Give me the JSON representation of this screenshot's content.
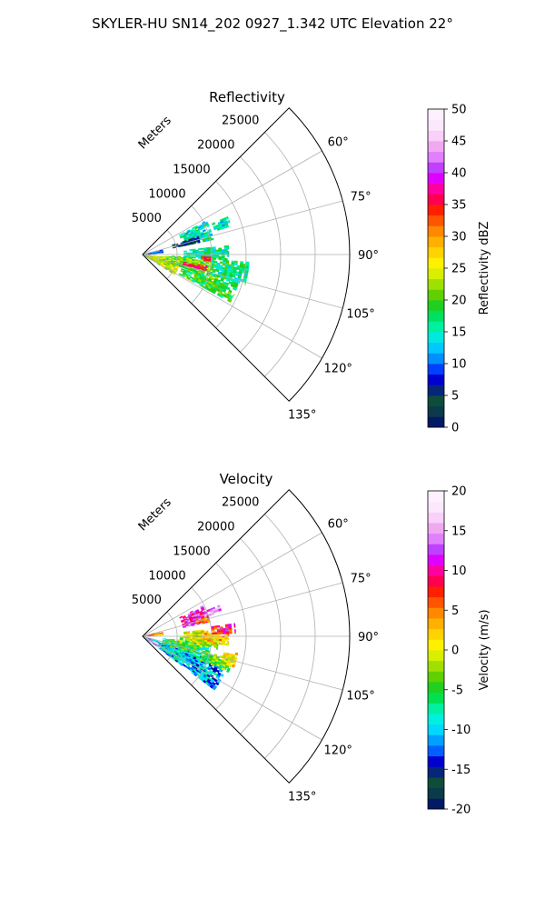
{
  "figure": {
    "suptitle": "SKYLER-HU  SN14_202  0927_1.342 UTC Elevation 22°"
  },
  "chart_data": [
    {
      "type": "heatmap",
      "projection": "polar-sector",
      "title": "Reflectivity",
      "range_label": "Meters",
      "range_ticks": [
        5000,
        10000,
        15000,
        20000,
        25000
      ],
      "range_max": 30000,
      "azimuth_ticks": [
        "60°",
        "75°",
        "90°",
        "105°",
        "120°",
        "135°"
      ],
      "azimuth_range_deg": [
        45,
        135
      ],
      "grid": true,
      "colorbar": {
        "label": "Reflectivity dBZ",
        "min": 0,
        "max": 50,
        "ticks": [
          0,
          5,
          10,
          15,
          20,
          25,
          30,
          35,
          40,
          45,
          50
        ],
        "colors": [
          "#001a66",
          "#0b3a4a",
          "#0d4d3a",
          "#06267a",
          "#0000d0",
          "#0040ff",
          "#0090ff",
          "#00c8ff",
          "#00e8e0",
          "#00f0a0",
          "#00e060",
          "#20d020",
          "#60d000",
          "#a0e000",
          "#d8f000",
          "#fff000",
          "#ffd200",
          "#ffb000",
          "#ff8800",
          "#ff5500",
          "#ff2000",
          "#ff0050",
          "#ff00a0",
          "#e000ff",
          "#c040ff",
          "#e080ff",
          "#f0a8f0",
          "#f8d0f8",
          "#fce8fc",
          "#fff0ff"
        ]
      },
      "data_regions": [
        {
          "az": [
            96,
            122
          ],
          "r": [
            0,
            5500
          ],
          "value": 24
        },
        {
          "az": [
            93,
            108
          ],
          "r": [
            3000,
            10500
          ],
          "value": 21
        },
        {
          "az": [
            106,
            118
          ],
          "r": [
            6000,
            14500
          ],
          "value": 19
        },
        {
          "az": [
            84,
            94
          ],
          "r": [
            6000,
            12500
          ],
          "value": 16
        },
        {
          "az": [
            94,
            106
          ],
          "r": [
            10000,
            15500
          ],
          "value": 17
        },
        {
          "az": [
            62,
            78
          ],
          "r": [
            6000,
            10500
          ],
          "value": 15
        },
        {
          "az": [
            66,
            72
          ],
          "r": [
            11000,
            13500
          ],
          "value": 14
        },
        {
          "az": [
            72,
            78
          ],
          "r": [
            4500,
            8500
          ],
          "value": 4
        },
        {
          "az": [
            100,
            104
          ],
          "r": [
            6000,
            9500
          ],
          "value": 35
        },
        {
          "az": [
            92,
            95
          ],
          "r": [
            8500,
            10000
          ],
          "value": 34
        },
        {
          "az": [
            76,
            86
          ],
          "r": [
            0,
            3000
          ],
          "value": 11
        }
      ]
    },
    {
      "type": "heatmap",
      "projection": "polar-sector",
      "title": "Velocity",
      "range_label": "Meters",
      "range_ticks": [
        5000,
        10000,
        15000,
        20000,
        25000
      ],
      "range_max": 30000,
      "azimuth_ticks": [
        "60°",
        "75°",
        "90°",
        "105°",
        "120°",
        "135°"
      ],
      "azimuth_range_deg": [
        45,
        135
      ],
      "grid": true,
      "colorbar": {
        "label": "Velocity (m/s)",
        "min": -20,
        "max": 20,
        "ticks": [
          -20,
          -15,
          -10,
          -5,
          0,
          5,
          10,
          15,
          20
        ],
        "colors": [
          "#001a66",
          "#0b3a4a",
          "#0d4d3a",
          "#06267a",
          "#0000d0",
          "#0060ff",
          "#00a0ff",
          "#00d8ff",
          "#00f0e0",
          "#00f0a0",
          "#00e050",
          "#20d020",
          "#60d000",
          "#a0e000",
          "#d8f000",
          "#fff000",
          "#ffd200",
          "#ffb000",
          "#ff8800",
          "#ff5500",
          "#ff2000",
          "#ff0050",
          "#ff00a0",
          "#e000ff",
          "#c040ff",
          "#e080ff",
          "#f0a8f0",
          "#f8d0f8",
          "#fce8fc",
          "#fff0ff"
        ]
      },
      "data_regions": [
        {
          "az": [
            108,
            126
          ],
          "r": [
            0,
            13000
          ],
          "value": -11
        },
        {
          "az": [
            116,
            124
          ],
          "r": [
            2000,
            6500
          ],
          "value": -8
        },
        {
          "az": [
            96,
            110
          ],
          "r": [
            3000,
            10000
          ],
          "value": -6
        },
        {
          "az": [
            104,
            112
          ],
          "r": [
            9000,
            13500
          ],
          "value": -4
        },
        {
          "az": [
            90,
            100
          ],
          "r": [
            5000,
            11000
          ],
          "value": -3
        },
        {
          "az": [
            84,
            96
          ],
          "r": [
            6000,
            9500
          ],
          "value": 0
        },
        {
          "az": [
            86,
            96
          ],
          "r": [
            9000,
            12500
          ],
          "value": 2
        },
        {
          "az": [
            82,
            88
          ],
          "r": [
            10000,
            13500
          ],
          "value": 9
        },
        {
          "az": [
            63,
            77
          ],
          "r": [
            6000,
            10000
          ],
          "value": 11
        },
        {
          "az": [
            68,
            72
          ],
          "r": [
            10000,
            12000
          ],
          "value": 14
        },
        {
          "az": [
            72,
            78
          ],
          "r": [
            8000,
            10000
          ],
          "value": 4
        },
        {
          "az": [
            100,
            108
          ],
          "r": [
            12000,
            14000
          ],
          "value": 1
        },
        {
          "az": [
            115,
            124
          ],
          "r": [
            0,
            3000
          ],
          "value": 16
        },
        {
          "az": [
            78,
            86
          ],
          "r": [
            0,
            3000
          ],
          "value": 4
        }
      ]
    }
  ]
}
